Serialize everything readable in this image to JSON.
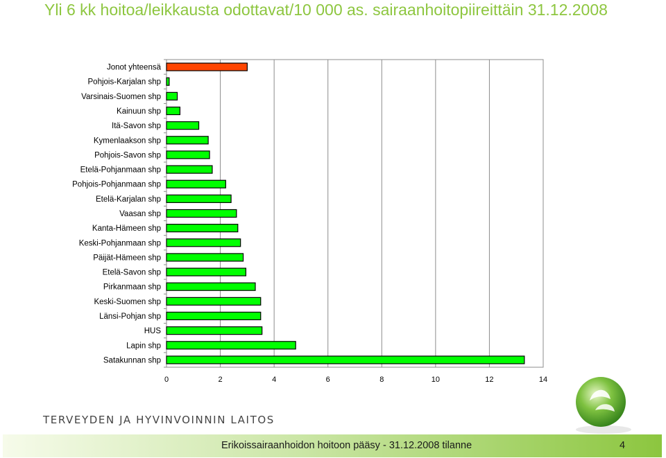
{
  "slide": {
    "title": "Yli 6 kk hoitoa/leikkausta odottavat/10 000 as. sairaanhoitopiireittäin 31.12.2008",
    "logo_text": "TERVEYDEN JA HYVINVOINNIN LAITOS",
    "footer_text": "Erikoissairaanhoidon hoitoon pääsy - 31.12.2008 tilanne",
    "page_number": "4"
  },
  "colors": {
    "title": "#8dc63f",
    "bar_total": "#ff4500",
    "bar_district": "#00ff00",
    "bar_outline": "#000000"
  },
  "chart_data": {
    "type": "bar",
    "orientation": "horizontal",
    "title": "",
    "xlabel": "",
    "ylabel": "",
    "xlim": [
      0,
      14
    ],
    "xticks": [
      0,
      2,
      4,
      6,
      8,
      10,
      12,
      14
    ],
    "grid": "vertical gridlines",
    "categories": [
      "Jonot yhteensä",
      "Pohjois-Karjalan shp",
      "Varsinais-Suomen shp",
      "Kainuun shp",
      "Itä-Savon shp",
      "Kymenlaakson shp",
      "Pohjois-Savon shp",
      "Etelä-Pohjanmaan shp",
      "Pohjois-Pohjanmaan shp",
      "Etelä-Karjalan shp",
      "Vaasan shp",
      "Kanta-Hämeen shp",
      "Keski-Pohjanmaan shp",
      "Päijät-Hämeen shp",
      "Etelä-Savon shp",
      "Pirkanmaan shp",
      "Keski-Suomen shp",
      "Länsi-Pohjan shp",
      "HUS",
      "Lapin shp",
      "Satakunnan shp"
    ],
    "values": [
      3.0,
      0.1,
      0.4,
      0.5,
      1.2,
      1.55,
      1.6,
      1.7,
      2.2,
      2.4,
      2.6,
      2.65,
      2.75,
      2.85,
      2.95,
      3.3,
      3.5,
      3.5,
      3.55,
      4.8,
      13.3
    ]
  }
}
